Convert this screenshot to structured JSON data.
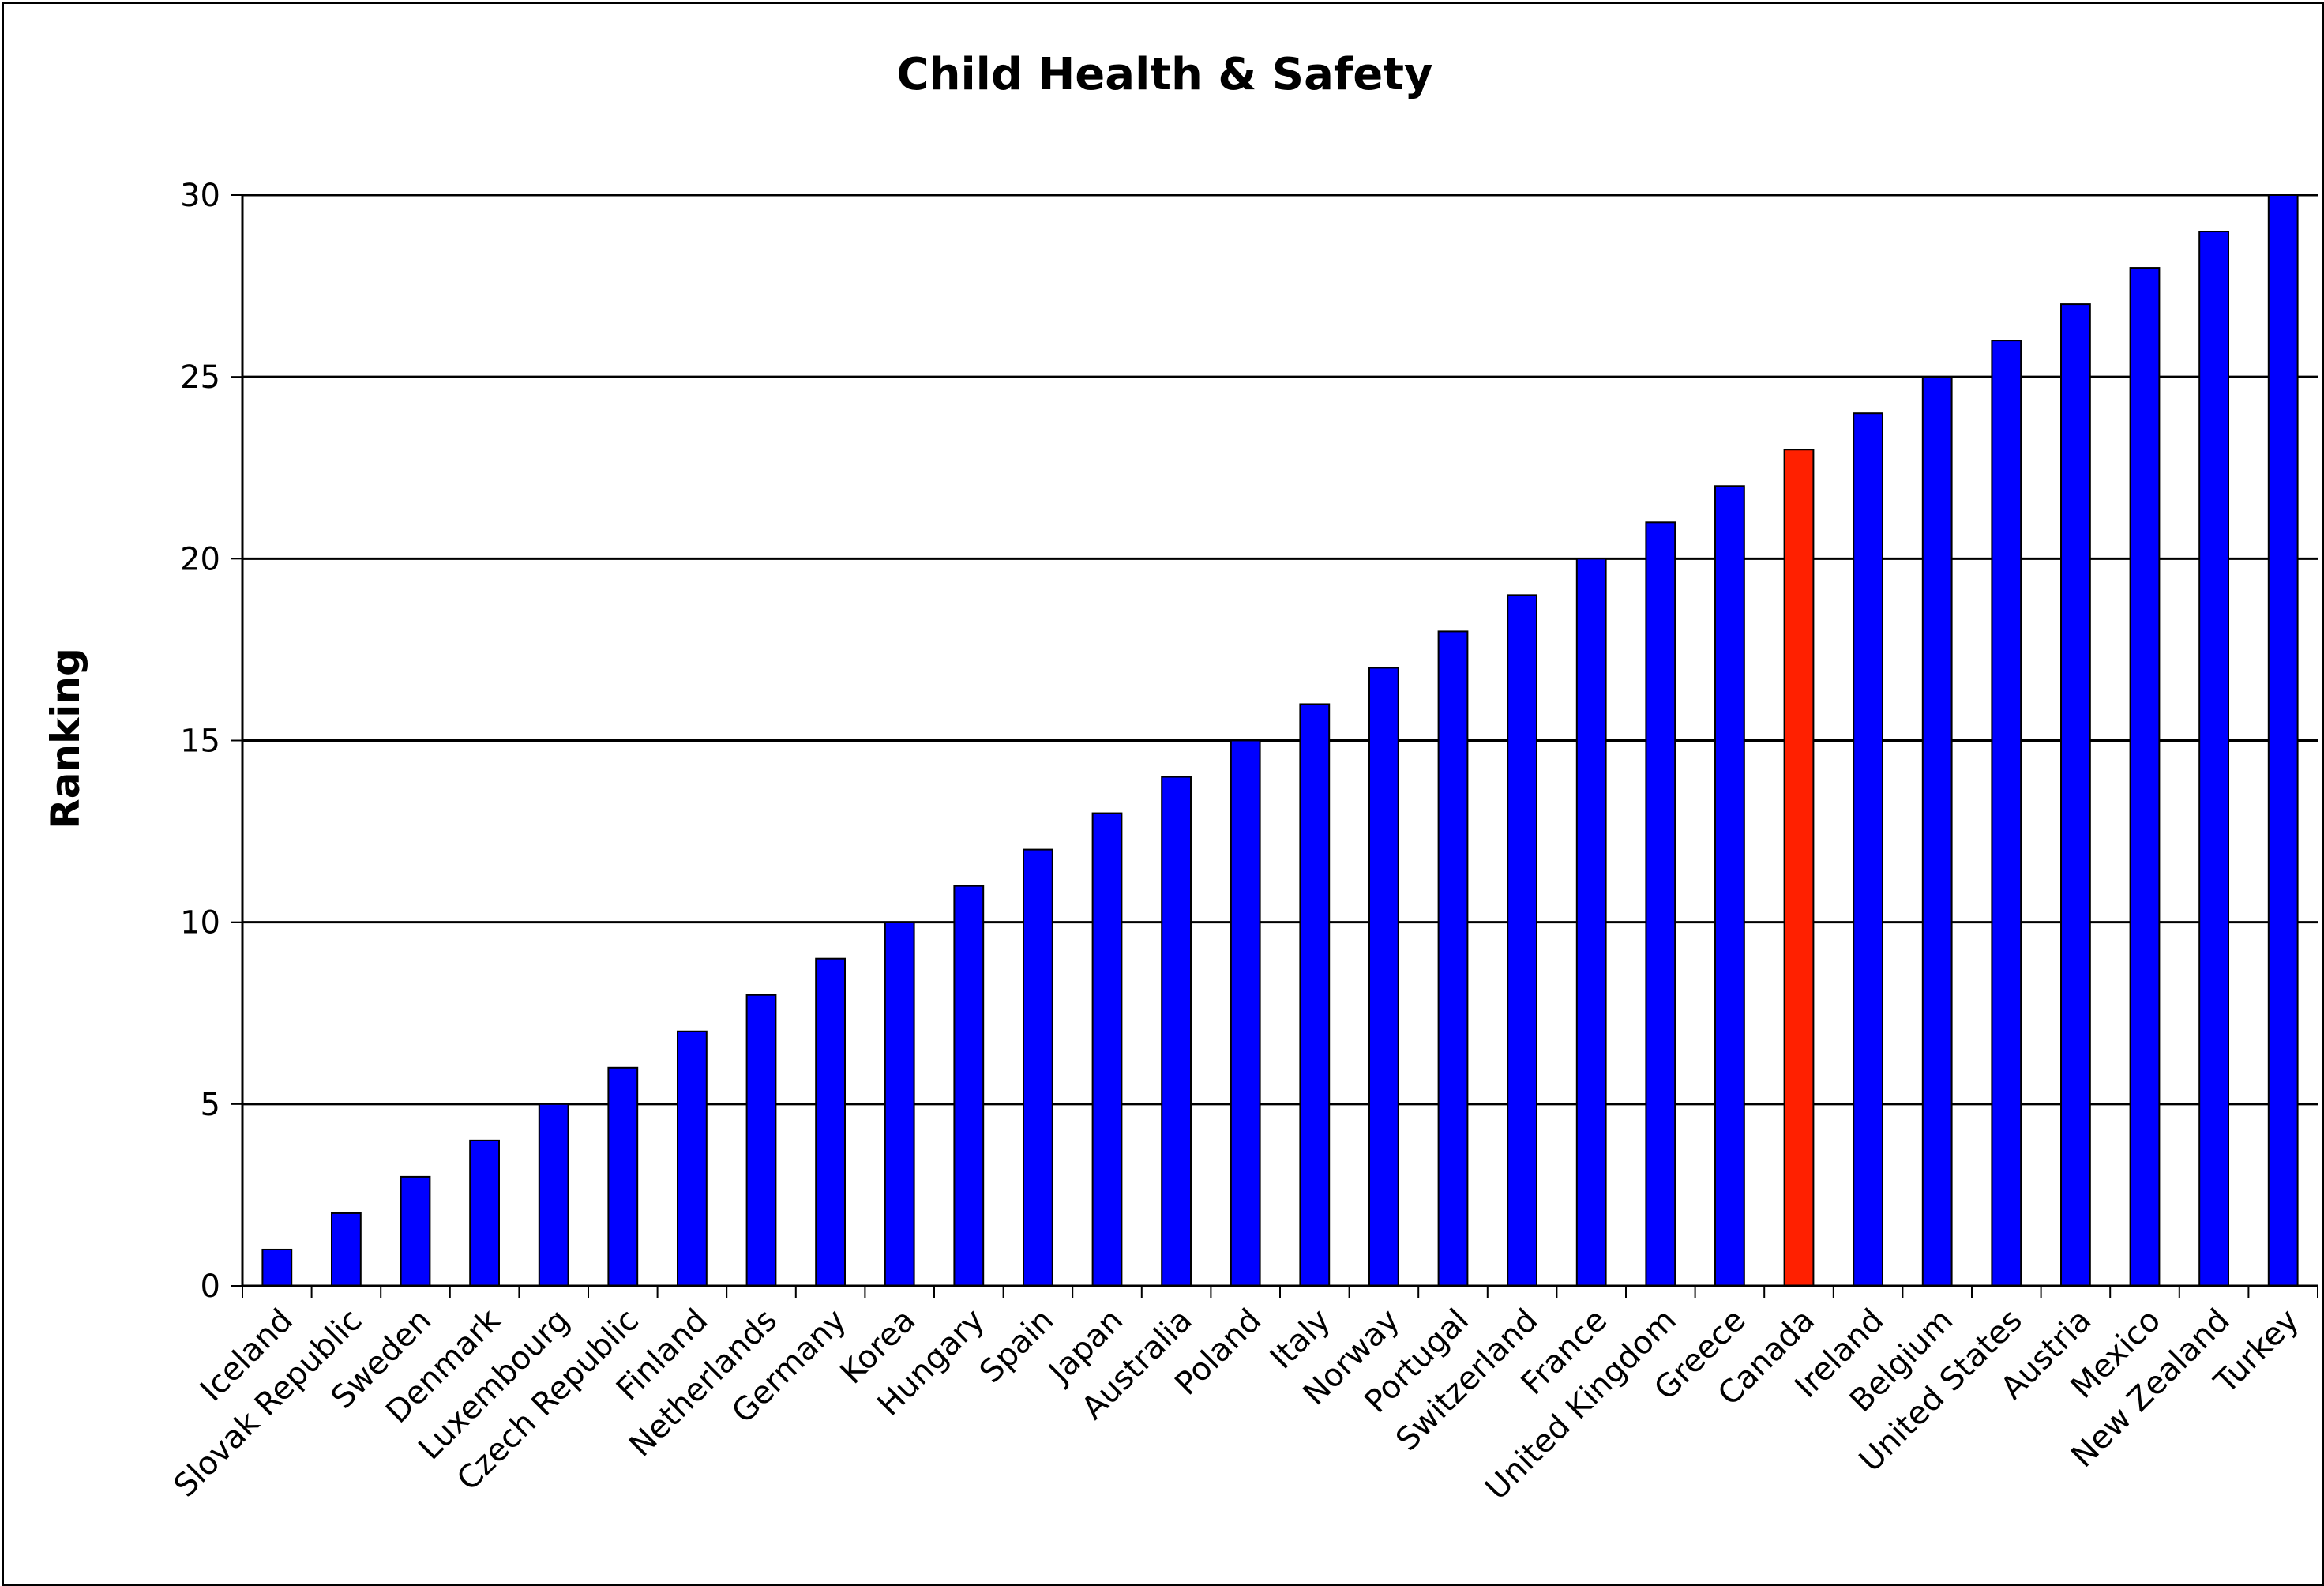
{
  "chart_data": {
    "type": "bar",
    "title": "Child Health & Safety",
    "xlabel": "",
    "ylabel": "Ranking",
    "ylim": [
      0,
      30
    ],
    "yticks": [
      0,
      5,
      10,
      15,
      20,
      25,
      30
    ],
    "grid": true,
    "categories": [
      "Iceland",
      "Slovak Republic",
      "Sweden",
      "Denmark",
      "Luxembourg",
      "Czech Republic",
      "Finland",
      "Netherlands",
      "Germany",
      "Korea",
      "Hungary",
      "Spain",
      "Japan",
      "Australia",
      "Poland",
      "Italy",
      "Norway",
      "Portugal",
      "Switzerland",
      "France",
      "United Kingdom",
      "Greece",
      "Canada",
      "Ireland",
      "Belgium",
      "United States",
      "Austria",
      "Mexico",
      "New Zealand",
      "Turkey"
    ],
    "values": [
      1,
      2,
      3,
      4,
      5,
      6,
      7,
      8,
      9,
      10,
      11,
      12,
      13,
      14,
      15,
      16,
      17,
      18,
      19,
      20,
      21,
      22,
      23,
      24,
      25,
      26,
      27,
      28,
      29,
      30
    ],
    "bar_color": "#0000ff",
    "highlight_category": "Canada",
    "highlight_color": "#ff2000",
    "bar_outline": "#000000"
  }
}
